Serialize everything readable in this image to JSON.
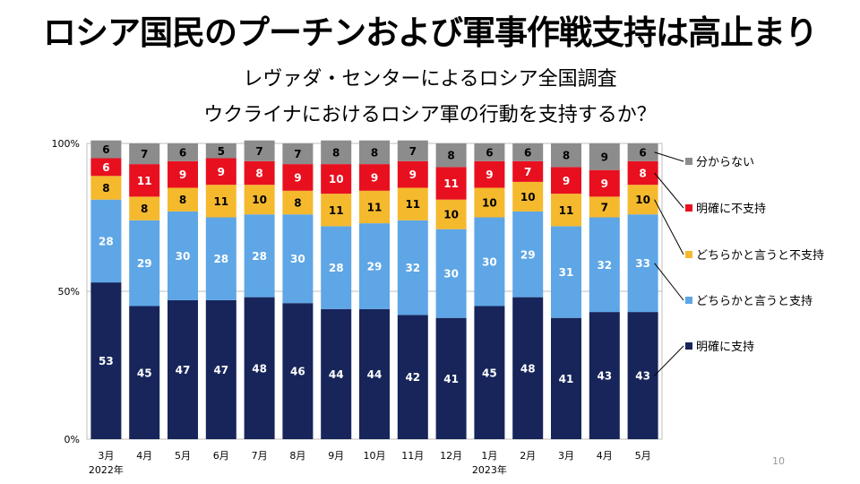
{
  "slide": {
    "title": "ロシア国民のプーチンおよび軍事作戦支持は高止まり",
    "subtitle_line1": "レヴァダ・センターによるロシア全国調査",
    "subtitle_line2": "ウクライナにおけるロシア軍の行動を支持するか？",
    "page_number": "10"
  },
  "chart_data": {
    "type": "bar",
    "stacked": true,
    "categories": [
      "3月",
      "4月",
      "5月",
      "6月",
      "7月",
      "8月",
      "9月",
      "10月",
      "11月",
      "12月",
      "1月",
      "2月",
      "3月",
      "4月",
      "5月"
    ],
    "year_labels": [
      {
        "index": 0,
        "label": "2022年"
      },
      {
        "index": 10,
        "label": "2023年"
      }
    ],
    "ylim": [
      0,
      100
    ],
    "yticks": [
      0,
      50,
      100
    ],
    "ytick_labels": [
      "0%",
      "50%",
      "100%"
    ],
    "legend_position": "right",
    "series": [
      {
        "name": "明確に支持",
        "color": "#17255a",
        "values": [
          53,
          45,
          47,
          47,
          48,
          46,
          44,
          44,
          42,
          41,
          45,
          48,
          41,
          43,
          43
        ]
      },
      {
        "name": "どちらかと言うと支持",
        "color": "#5ea6e6",
        "values": [
          28,
          29,
          30,
          28,
          28,
          30,
          28,
          29,
          32,
          30,
          30,
          29,
          31,
          32,
          33
        ]
      },
      {
        "name": "どちらかと言うと不支持",
        "color": "#f5b92e",
        "values": [
          8,
          8,
          8,
          11,
          10,
          8,
          11,
          11,
          11,
          10,
          10,
          10,
          11,
          7,
          10
        ]
      },
      {
        "name": "明確に不支持",
        "color": "#e8101f",
        "values": [
          6,
          11,
          9,
          9,
          8,
          9,
          10,
          9,
          9,
          11,
          9,
          7,
          9,
          9,
          8
        ]
      },
      {
        "name": "分からない",
        "color": "#8c8c8c",
        "values": [
          6,
          7,
          6,
          5,
          7,
          7,
          8,
          8,
          7,
          8,
          6,
          6,
          8,
          9,
          6
        ]
      }
    ]
  }
}
